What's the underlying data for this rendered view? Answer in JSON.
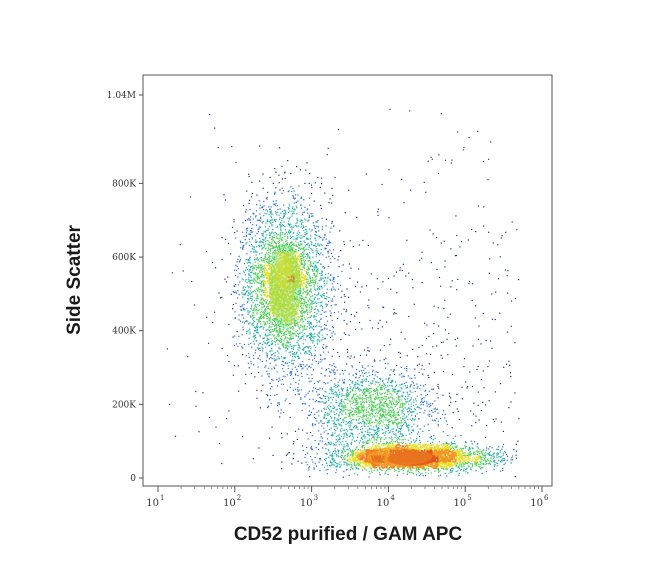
{
  "chart_data": {
    "type": "scatter",
    "xlabel": "CD52 purified / GAM APC",
    "ylabel": "Side Scatter",
    "x_scale": "log",
    "xlim": [
      10,
      1000000
    ],
    "ylim": [
      0,
      1040000
    ],
    "x_ticks": [
      {
        "value": 10,
        "base": "10",
        "exp": "1"
      },
      {
        "value": 100,
        "base": "10",
        "exp": "2"
      },
      {
        "value": 1000,
        "base": "10",
        "exp": "3"
      },
      {
        "value": 10000,
        "base": "10",
        "exp": "4"
      },
      {
        "value": 100000,
        "base": "10",
        "exp": "5"
      },
      {
        "value": 1000000,
        "base": "10",
        "exp": "6"
      }
    ],
    "y_ticks": [
      {
        "value": 0,
        "label": "0"
      },
      {
        "value": 200000,
        "label": "200K"
      },
      {
        "value": 400000,
        "label": "400K"
      },
      {
        "value": 600000,
        "label": "600K"
      },
      {
        "value": 800000,
        "label": "800K"
      },
      {
        "value": 1040000,
        "label": "1.04M"
      }
    ],
    "populations": [
      {
        "x_center": 450,
        "y_center": 520000,
        "x_spread_log": 0.28,
        "y_spread": 115000,
        "count": 3600
      },
      {
        "x_center": 6000,
        "y_center": 185000,
        "x_spread_log": 0.42,
        "y_spread": 55000,
        "count": 1600
      },
      {
        "x_center": 20000,
        "y_center": 55000,
        "x_spread_log": 0.55,
        "y_spread": 18000,
        "count": 2600
      },
      {
        "x_center": 20000,
        "y_center": 350000,
        "x_spread_log": 1.4,
        "y_spread": 280000,
        "count": 700
      }
    ],
    "colormap": [
      "#1a2f9e",
      "#2a6fd6",
      "#24b0a6",
      "#4fd05a",
      "#e8e02a",
      "#f47a1a",
      "#e0201a"
    ],
    "grid": false,
    "legend": "none"
  }
}
